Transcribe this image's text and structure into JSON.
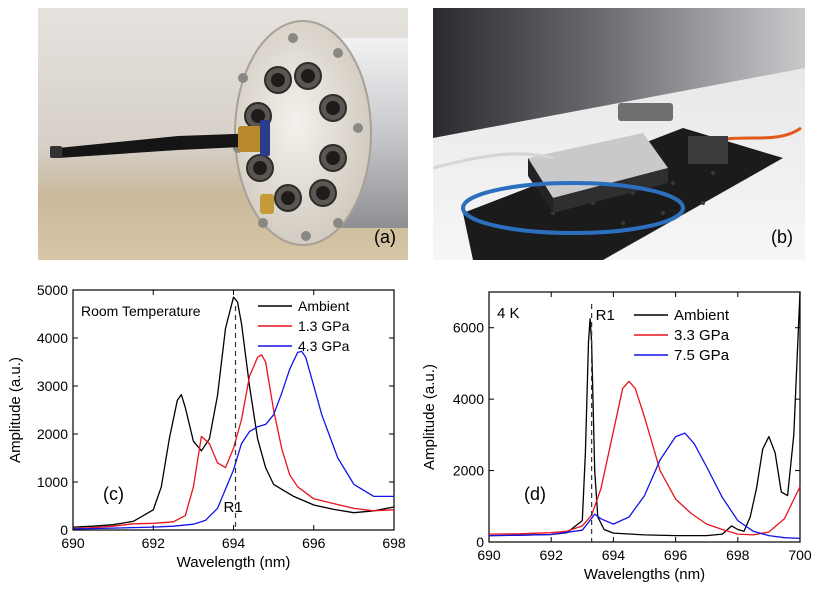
{
  "photos": [
    {
      "label": "(a)",
      "subject": "high-pressure cell plug with optical fiber feedthrough"
    },
    {
      "label": "(b)",
      "subject": "compact spectrometer setup on optical breadboard"
    }
  ],
  "chart_data": [
    {
      "type": "line",
      "panel_label": "(c)",
      "title": "",
      "annotation": "Room Temperature",
      "marker_label": "R1",
      "marker_x": 694.05,
      "xlabel": "Wavelength (nm)",
      "ylabel": "Amplitude (a.u.)",
      "xlim": [
        690,
        698
      ],
      "ylim": [
        0,
        5000
      ],
      "xticks": [
        "690",
        "692",
        "694",
        "696",
        "698"
      ],
      "yticks": [
        "0",
        "1000",
        "2000",
        "3000",
        "4000",
        "5000"
      ],
      "legend_position": "top-right",
      "series": [
        {
          "name": "Ambient",
          "color": "#000000",
          "x": [
            690,
            690.5,
            691,
            691.5,
            692,
            692.2,
            692.4,
            692.6,
            692.7,
            692.8,
            693,
            693.2,
            693.4,
            693.6,
            693.8,
            694,
            694.1,
            694.2,
            694.4,
            694.6,
            694.8,
            695,
            695.5,
            696,
            696.5,
            697,
            697.5,
            698
          ],
          "y": [
            60,
            80,
            110,
            180,
            420,
            900,
            1900,
            2700,
            2820,
            2550,
            1850,
            1650,
            1900,
            2800,
            4200,
            4850,
            4750,
            4300,
            3000,
            1900,
            1300,
            950,
            700,
            520,
            430,
            360,
            400,
            480
          ]
        },
        {
          "name": "1.3 GPa",
          "color": "#e8141c",
          "x": [
            690,
            690.5,
            691,
            691.5,
            692,
            692.5,
            692.8,
            693,
            693.2,
            693.4,
            693.6,
            693.8,
            694,
            694.2,
            694.4,
            694.6,
            694.7,
            694.8,
            695,
            695.2,
            695.4,
            695.6,
            696,
            696.5,
            697,
            697.5,
            698
          ],
          "y": [
            30,
            50,
            80,
            130,
            140,
            170,
            300,
            900,
            1950,
            1800,
            1400,
            1300,
            1700,
            2300,
            3200,
            3600,
            3650,
            3500,
            2500,
            1700,
            1150,
            900,
            650,
            550,
            450,
            400,
            420
          ]
        },
        {
          "name": "4.3 GPa",
          "color": "#1414e8",
          "x": [
            690,
            691,
            692,
            692.5,
            693,
            693.3,
            693.6,
            694,
            694.2,
            694.4,
            694.6,
            694.8,
            695,
            695.2,
            695.4,
            695.6,
            695.7,
            695.8,
            696,
            696.2,
            696.4,
            696.6,
            697,
            697.5,
            698
          ],
          "y": [
            20,
            40,
            60,
            80,
            120,
            200,
            450,
            1250,
            1800,
            2050,
            2150,
            2200,
            2400,
            2850,
            3350,
            3700,
            3720,
            3600,
            3000,
            2400,
            1950,
            1500,
            950,
            700,
            700
          ]
        }
      ]
    },
    {
      "type": "line",
      "panel_label": "(d)",
      "title": "",
      "annotation": "4 K",
      "marker_label": "R1",
      "marker_x": 693.3,
      "xlabel": "Wavelengths (nm)",
      "ylabel": "Amplitude (a.u.)",
      "xlim": [
        690,
        700
      ],
      "ylim": [
        0,
        7000
      ],
      "xticks": [
        "690",
        "692",
        "694",
        "696",
        "698",
        "700"
      ],
      "yticks": [
        "0",
        "2000",
        "4000",
        "6000"
      ],
      "legend_position": "top-right",
      "series": [
        {
          "name": "Ambient",
          "color": "#000000",
          "x": [
            690,
            691,
            692,
            692.5,
            693,
            693.1,
            693.2,
            693.25,
            693.3,
            693.4,
            693.5,
            693.7,
            694,
            695,
            696,
            697,
            697.5,
            697.8,
            698,
            698.2,
            698.4,
            698.6,
            698.8,
            699,
            699.2,
            699.4,
            699.6,
            699.8,
            700
          ],
          "y": [
            180,
            190,
            210,
            260,
            600,
            2500,
            5600,
            6250,
            5600,
            2000,
            700,
            350,
            250,
            200,
            180,
            180,
            220,
            450,
            350,
            300,
            700,
            1500,
            2600,
            2950,
            2500,
            1400,
            1300,
            3000,
            7000
          ]
        },
        {
          "name": "3.3 GPa",
          "color": "#e8141c",
          "x": [
            690,
            691,
            692,
            692.5,
            693,
            693.3,
            693.6,
            694,
            694.3,
            694.5,
            694.7,
            695,
            695.5,
            696,
            696.5,
            697,
            697.5,
            698,
            698.5,
            699,
            699.5,
            700
          ],
          "y": [
            220,
            230,
            260,
            300,
            450,
            750,
            1500,
            3100,
            4300,
            4500,
            4300,
            3500,
            2000,
            1200,
            800,
            500,
            350,
            220,
            200,
            280,
            650,
            1550
          ]
        },
        {
          "name": "7.5 GPa",
          "color": "#1414e8",
          "x": [
            690,
            691,
            692,
            693,
            693.2,
            693.4,
            693.6,
            694,
            694.5,
            695,
            695.5,
            696,
            696.3,
            696.6,
            697,
            697.5,
            698,
            698.5,
            699,
            699.5,
            700
          ],
          "y": [
            180,
            190,
            210,
            330,
            550,
            780,
            650,
            500,
            700,
            1300,
            2300,
            2950,
            3050,
            2750,
            2100,
            1250,
            600,
            300,
            180,
            120,
            100
          ]
        }
      ]
    }
  ]
}
